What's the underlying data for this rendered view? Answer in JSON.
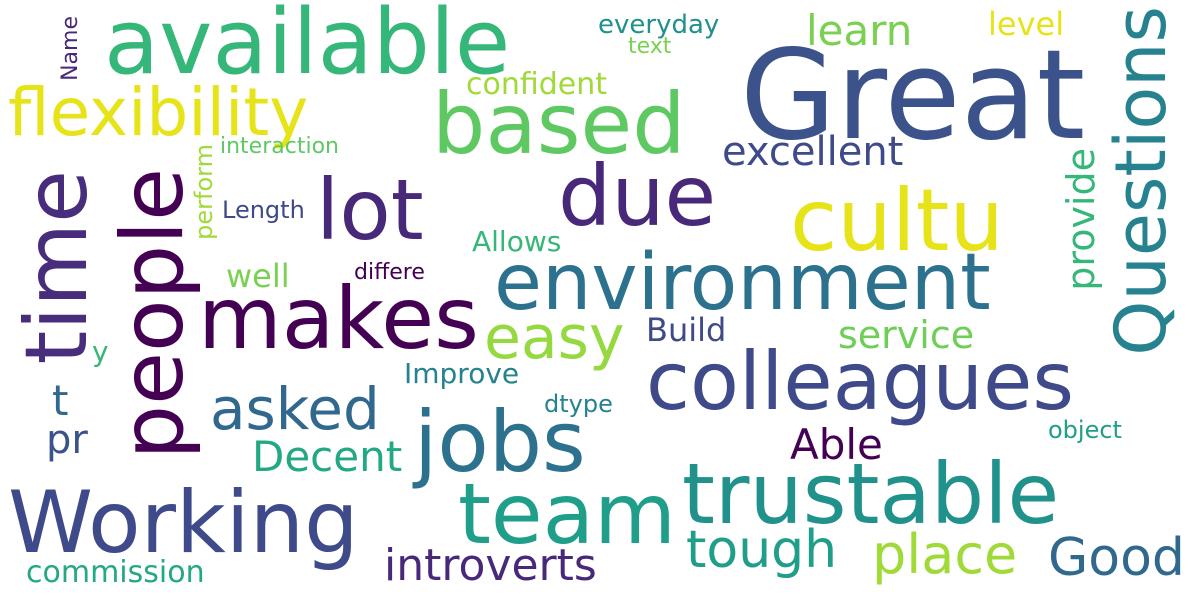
{
  "words": [
    {
      "id": "great",
      "text": "Great",
      "color": "#3b528b"
    },
    {
      "id": "available",
      "text": "available",
      "color": "#35b779"
    },
    {
      "id": "flexibility",
      "text": "flexibility",
      "color": "#e6e418"
    },
    {
      "id": "based",
      "text": "based",
      "color": "#5ec962"
    },
    {
      "id": "due",
      "text": "due",
      "color": "#482878"
    },
    {
      "id": "lot",
      "text": "lot",
      "color": "#482878"
    },
    {
      "id": "cultu",
      "text": "cultu",
      "color": "#e6e418"
    },
    {
      "id": "people",
      "text": "people",
      "color": "#440154"
    },
    {
      "id": "time",
      "text": "time",
      "color": "#472d7b"
    },
    {
      "id": "makes",
      "text": "makes",
      "color": "#440154"
    },
    {
      "id": "environment",
      "text": "environment",
      "color": "#2c728e"
    },
    {
      "id": "colleagues",
      "text": "colleagues",
      "color": "#3e4a89"
    },
    {
      "id": "jobs",
      "text": "jobs",
      "color": "#2c728e"
    },
    {
      "id": "trustable",
      "text": "trustable",
      "color": "#21918c"
    },
    {
      "id": "team",
      "text": "team",
      "color": "#1f9e89"
    },
    {
      "id": "working",
      "text": "Working",
      "color": "#3e4a89"
    },
    {
      "id": "questions",
      "text": "Questions",
      "color": "#26828e"
    },
    {
      "id": "easy",
      "text": "easy",
      "color": "#95d840"
    },
    {
      "id": "asked",
      "text": "asked",
      "color": "#31688e"
    },
    {
      "id": "excellent",
      "text": "excellent",
      "color": "#3e4a89"
    },
    {
      "id": "learn",
      "text": "learn",
      "color": "#7ad151"
    },
    {
      "id": "level",
      "text": "level",
      "color": "#e6e418"
    },
    {
      "id": "everyday",
      "text": "everyday",
      "color": "#21918c"
    },
    {
      "id": "text",
      "text": "text",
      "color": "#7ad151"
    },
    {
      "id": "name",
      "text": "Name",
      "color": "#482878"
    },
    {
      "id": "confident",
      "text": "confident",
      "color": "#a0da39"
    },
    {
      "id": "interaction",
      "text": "interaction",
      "color": "#5ec962"
    },
    {
      "id": "perform",
      "text": "perform",
      "color": "#a0da39"
    },
    {
      "id": "length",
      "text": "Length",
      "color": "#3e4a89"
    },
    {
      "id": "allows",
      "text": "Allows",
      "color": "#35b779"
    },
    {
      "id": "well",
      "text": "well",
      "color": "#7ad151"
    },
    {
      "id": "differe",
      "text": "differe",
      "color": "#440154"
    },
    {
      "id": "provide",
      "text": "provide",
      "color": "#35b779"
    },
    {
      "id": "service",
      "text": "service",
      "color": "#6ece58"
    },
    {
      "id": "build",
      "text": "Build",
      "color": "#3e4a89"
    },
    {
      "id": "y",
      "text": "y",
      "color": "#35b779"
    },
    {
      "id": "improve",
      "text": "Improve",
      "color": "#26828e"
    },
    {
      "id": "t",
      "text": "t",
      "color": "#31688e"
    },
    {
      "id": "pr",
      "text": "pr",
      "color": "#3b528b"
    },
    {
      "id": "dtype",
      "text": "dtype",
      "color": "#26828e"
    },
    {
      "id": "object",
      "text": "object",
      "color": "#1f9e89"
    },
    {
      "id": "able",
      "text": "Able",
      "color": "#440154"
    },
    {
      "id": "decent",
      "text": "Decent",
      "color": "#22a884"
    },
    {
      "id": "tough",
      "text": "tough",
      "color": "#1f9e89"
    },
    {
      "id": "place",
      "text": "place",
      "color": "#a0da39"
    },
    {
      "id": "good",
      "text": "Good",
      "color": "#31688e"
    },
    {
      "id": "introverts",
      "text": "introverts",
      "color": "#482878"
    },
    {
      "id": "commission",
      "text": "commission",
      "color": "#22a884"
    }
  ]
}
